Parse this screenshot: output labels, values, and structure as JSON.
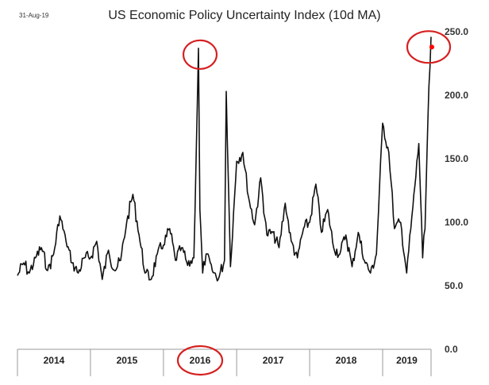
{
  "date_stamp": "31-Aug-19",
  "chart_data": {
    "type": "line",
    "title": "US Economic Policy Uncertainty Index (10d MA)",
    "xlabel": "",
    "ylabel": "",
    "ylim": [
      0,
      250
    ],
    "xlim": [
      "2014-01-01",
      "2019-08-31"
    ],
    "y_ticks": [
      "0.0",
      "50.0",
      "100.0",
      "150.0",
      "200.0",
      "250.0"
    ],
    "y_axis_position": "right",
    "grid": false,
    "legend": "none",
    "x_categories": [
      "2014",
      "2015",
      "2016",
      "2017",
      "2018",
      "2019"
    ],
    "line_color": "#111111",
    "marker_color": "#ff0000",
    "highlight_color": "#d62020",
    "highlights": [
      "2016 peak",
      "2019 peak",
      "2016 label"
    ],
    "series": [
      {
        "x": [
          "2014-01-01",
          "2014-02-01",
          "2014-03-01",
          "2014-04-01",
          "2014-05-01",
          "2014-06-01",
          "2014-07-01",
          "2014-08-01",
          "2014-09-01",
          "2014-10-01",
          "2014-11-01",
          "2014-12-01",
          "2015-01-01",
          "2015-02-01",
          "2015-03-01",
          "2015-04-01",
          "2015-05-01",
          "2015-06-01",
          "2015-07-01",
          "2015-08-01",
          "2015-09-01",
          "2015-10-01",
          "2015-11-01",
          "2015-12-01",
          "2016-01-01",
          "2016-02-01",
          "2016-03-01",
          "2016-04-01",
          "2016-05-01",
          "2016-06-01",
          "2016-06-24",
          "2016-07-01",
          "2016-07-15",
          "2016-08-01",
          "2016-09-01",
          "2016-10-01",
          "2016-11-01",
          "2016-11-10",
          "2016-12-01",
          "2017-01-01",
          "2017-02-01",
          "2017-03-01",
          "2017-04-01",
          "2017-05-01",
          "2017-06-01",
          "2017-07-01",
          "2017-08-01",
          "2017-09-01",
          "2017-10-01",
          "2017-11-01",
          "2017-12-01",
          "2018-01-01",
          "2018-02-01",
          "2018-03-01",
          "2018-04-01",
          "2018-05-01",
          "2018-06-01",
          "2018-07-01",
          "2018-08-01",
          "2018-09-01",
          "2018-10-01",
          "2018-11-01",
          "2018-12-01",
          "2019-01-01",
          "2019-02-01",
          "2019-03-01",
          "2019-04-01",
          "2019-05-01",
          "2019-06-01",
          "2019-07-01",
          "2019-07-20",
          "2019-08-01",
          "2019-08-15",
          "2019-08-31"
        ],
        "y": [
          58,
          68,
          60,
          72,
          80,
          62,
          75,
          105,
          85,
          68,
          60,
          72,
          72,
          85,
          55,
          78,
          62,
          70,
          100,
          122,
          90,
          60,
          55,
          75,
          82,
          95,
          70,
          80,
          66,
          72,
          237,
          110,
          60,
          75,
          62,
          55,
          70,
          203,
          65,
          148,
          155,
          120,
          98,
          135,
          90,
          92,
          80,
          115,
          85,
          72,
          95,
          100,
          130,
          92,
          110,
          80,
          75,
          90,
          65,
          92,
          70,
          60,
          75,
          178,
          155,
          95,
          100,
          60,
          112,
          162,
          72,
          95,
          180,
          246
        ]
      }
    ]
  }
}
